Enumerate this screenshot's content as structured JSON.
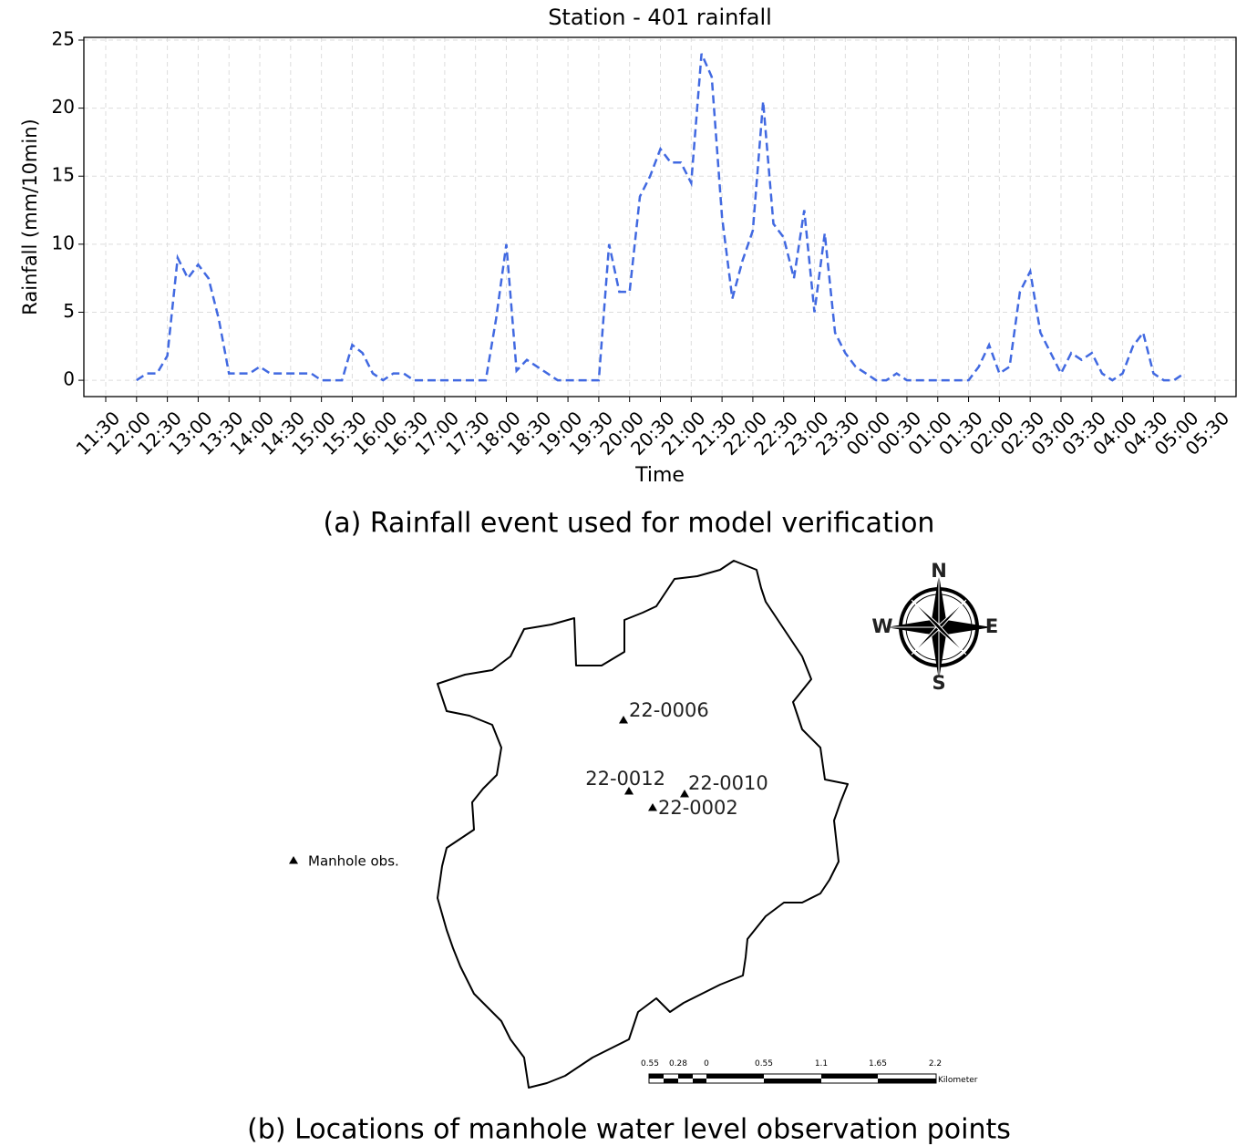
{
  "chart_data": {
    "type": "line",
    "title": "Station - 401 rainfall",
    "x_label": "Time",
    "y_label": "Rainfall (mm/10min)",
    "categories": [
      "11:30",
      null,
      null,
      "12:00",
      null,
      null,
      "12:30",
      null,
      null,
      "13:00",
      null,
      null,
      "13:30",
      null,
      null,
      "14:00",
      null,
      null,
      "14:30",
      null,
      null,
      "15:00",
      null,
      null,
      "15:30",
      null,
      null,
      "16:00",
      null,
      null,
      "16:30",
      null,
      null,
      "17:00",
      null,
      null,
      "17:30",
      null,
      null,
      "18:00",
      null,
      null,
      "18:30",
      null,
      null,
      "19:00",
      null,
      null,
      "19:30",
      null,
      null,
      "20:00",
      null,
      null,
      "20:30",
      null,
      null,
      "21:00",
      null,
      null,
      "21:30",
      null,
      null,
      "22:00",
      null,
      null,
      "22:30",
      null,
      null,
      "23:00",
      null,
      null,
      "23:30",
      null,
      null,
      "00:00",
      null,
      null,
      "00:30",
      null,
      null,
      "01:00",
      null,
      null,
      "01:30",
      null,
      null,
      "02:00",
      null,
      null,
      "02:30",
      null,
      null,
      "03:00",
      null,
      null,
      "03:30",
      null,
      null,
      "04:00",
      null,
      null,
      "04:30",
      null,
      null,
      "05:00",
      null,
      null,
      "05:30"
    ],
    "series": [
      {
        "color": "#4169e1",
        "values": [
          null,
          null,
          null,
          0,
          0.5,
          0.5,
          1.8,
          9,
          7.5,
          8.5,
          7.5,
          4.5,
          0.5,
          0.5,
          0.5,
          1,
          0.5,
          0.5,
          0.5,
          0.5,
          0.5,
          0,
          0,
          0,
          2.6,
          2,
          0.5,
          0,
          0.5,
          0.5,
          0,
          0,
          0,
          0,
          0,
          0,
          0,
          0,
          4.5,
          10,
          0.7,
          1.5,
          1,
          0.5,
          0,
          0,
          0,
          0,
          0,
          10,
          6.5,
          6.5,
          13.5,
          15,
          17,
          16,
          16,
          14.5,
          24,
          22.3,
          12,
          6,
          8.8,
          11,
          20.5,
          11.5,
          10.5,
          7.5,
          12.5,
          5,
          10.8,
          3.5,
          2,
          1,
          0.5,
          0,
          0,
          0.5,
          0,
          0,
          0,
          0,
          0,
          0,
          0,
          1,
          2.6,
          0.5,
          1,
          6.5,
          8,
          3.5,
          2,
          0.5,
          2,
          1.5,
          2,
          0.5,
          0,
          0.5,
          2.5,
          3.5,
          0.5,
          0,
          0,
          0.5,
          null,
          null,
          null
        ]
      }
    ],
    "ylim": [
      -1.2,
      25.2
    ],
    "yticks": [
      0,
      5,
      10,
      15,
      20,
      25
    ],
    "grid": true,
    "line_style": "dashed"
  },
  "caption_a": "(a) Rainfall event used for model verification",
  "caption_b": "(b) Locations of manhole water level observation points",
  "map": {
    "points": [
      "22-0006",
      "22-0012",
      "22-0010",
      "22-0002"
    ],
    "legend": "Manhole obs.",
    "compass": {
      "north": "N",
      "east": "E",
      "south": "S",
      "west": "W"
    },
    "scale_bar": {
      "labels": [
        0.55,
        0.28,
        0,
        0.55,
        1.1,
        1.65,
        2.2
      ],
      "unit": "Kilometer"
    }
  }
}
